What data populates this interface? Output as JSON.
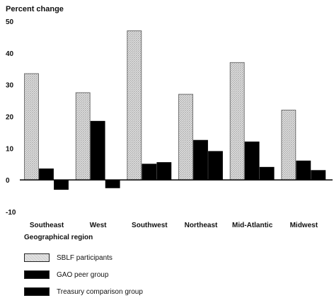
{
  "chart_data": {
    "type": "bar",
    "title": "",
    "ylabel": "Percent change",
    "xlabel": "Geographical region",
    "ylim": [
      -10,
      50
    ],
    "yticks": [
      50,
      40,
      30,
      20,
      10,
      0,
      -10
    ],
    "grid": false,
    "legend_position": "bottom",
    "categories": [
      "Southeast",
      "West",
      "Southwest",
      "Northeast",
      "Mid-Atlantic",
      "Midwest"
    ],
    "series": [
      {
        "name": "SBLF participants",
        "color": "#d6d6d6",
        "values": [
          33.5,
          27.5,
          47,
          27,
          37,
          22
        ]
      },
      {
        "name": "GAO peer group",
        "color": "#000000",
        "values": [
          3.5,
          18.5,
          5,
          12.5,
          12,
          6
        ]
      },
      {
        "name": "Treasury comparison group",
        "color": "#000000",
        "values": [
          -3,
          -2.5,
          5.5,
          9,
          4,
          3
        ]
      }
    ]
  }
}
